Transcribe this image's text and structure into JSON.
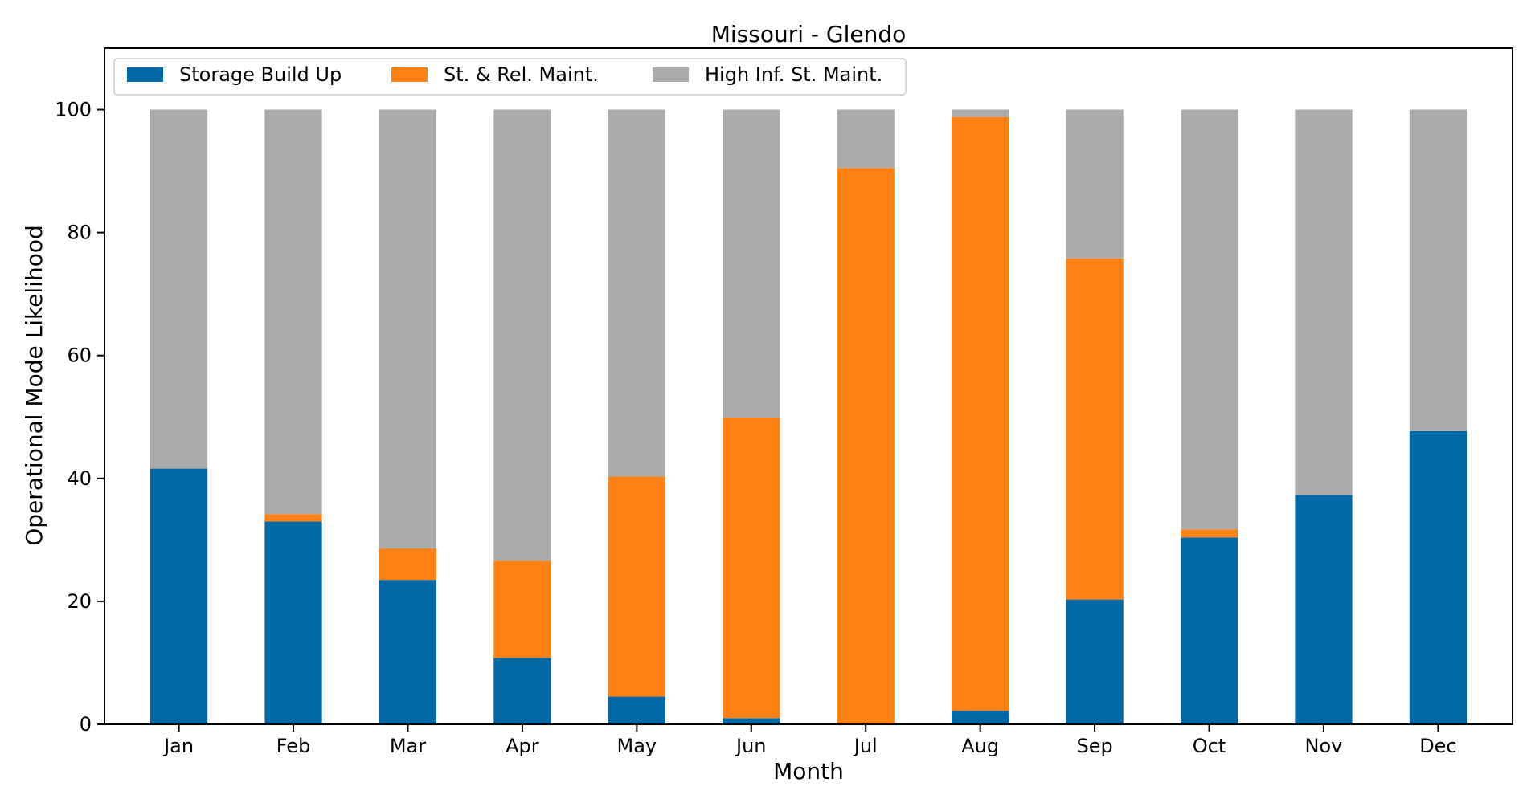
{
  "chart_data": {
    "type": "bar",
    "stacked": true,
    "title": "Missouri - Glendo",
    "xlabel": "Month",
    "ylabel": "Operational Mode Likelihood",
    "ylim": [
      0,
      110
    ],
    "yticks": [
      0,
      20,
      40,
      60,
      80,
      100
    ],
    "grid": false,
    "legend_position": "top-left",
    "categories": [
      "Jan",
      "Feb",
      "Mar",
      "Apr",
      "May",
      "Jun",
      "Jul",
      "Aug",
      "Sep",
      "Oct",
      "Nov",
      "Dec"
    ],
    "series": [
      {
        "name": "Storage Build Up",
        "color": "#0069a6",
        "values": [
          41.6,
          33.0,
          23.5,
          10.8,
          4.5,
          1.0,
          0.0,
          2.2,
          20.3,
          30.4,
          37.3,
          47.7
        ]
      },
      {
        "name": "St. & Rel. Maint.",
        "color": "#ff8114",
        "values": [
          0.0,
          1.2,
          5.1,
          15.8,
          35.8,
          48.9,
          90.5,
          96.6,
          55.5,
          1.3,
          0.0,
          0.0
        ]
      },
      {
        "name": "High Inf. St. Maint.",
        "color": "#ababab",
        "values": [
          58.4,
          65.8,
          71.4,
          73.4,
          59.7,
          50.1,
          9.5,
          1.2,
          24.2,
          68.3,
          62.7,
          52.3
        ]
      }
    ]
  }
}
